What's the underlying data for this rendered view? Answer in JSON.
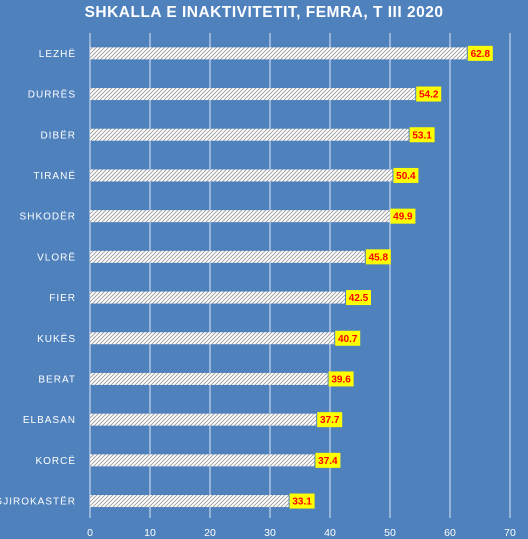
{
  "chart_data": {
    "type": "bar",
    "orientation": "horizontal",
    "title": "SHKALLA E INAKTIVITETIT,  FEMRA, T III 2020",
    "categories": [
      "LEZHË",
      "DURRËS",
      "DIBËR",
      "TIRANË",
      "SHKODËR",
      "VLORË",
      "FIER",
      "KUKËS",
      "BERAT",
      "ELBASAN",
      "KORCË",
      "GJIROKASTËR"
    ],
    "values": [
      62.8,
      54.2,
      53.1,
      50.4,
      49.9,
      45.8,
      42.5,
      40.7,
      39.6,
      37.7,
      37.4,
      33.1
    ],
    "xlim": [
      0,
      70
    ],
    "xticks": [
      0,
      10,
      20,
      30,
      40,
      50,
      60,
      70
    ],
    "xlabel": "",
    "ylabel": "",
    "grid": "vertical",
    "legend": "none",
    "colors": {
      "background": "#4F81BD",
      "bar_fill": "#FFFFFF",
      "bar_hatch": "#9A9A9A",
      "label_box": "#FFFF00",
      "label_text": "#FF0000",
      "text": "#FFFFFF",
      "gridline": "#FFFFFF"
    }
  }
}
